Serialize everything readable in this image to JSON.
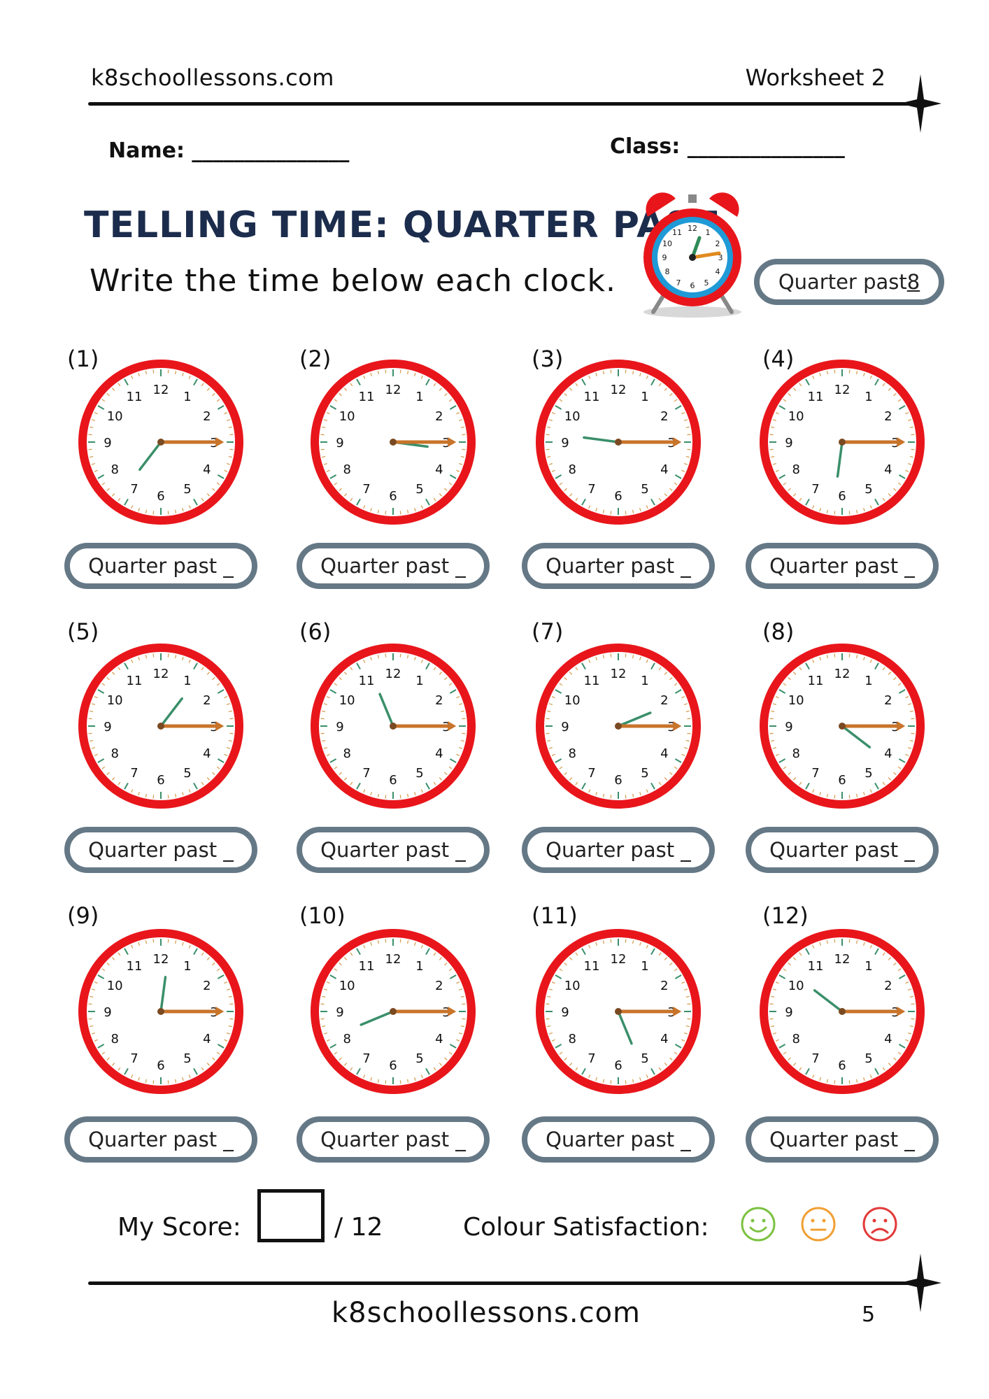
{
  "header": {
    "site": "k8schoollessons.com",
    "worksheet": "Worksheet 2"
  },
  "student": {
    "name_label": "Name: _______________",
    "class_label": "Class: _______________"
  },
  "title": "TELLING TIME: QUARTER PAST",
  "instructions": "Write the time below each clock.",
  "example": {
    "prefix": "Quarter past ",
    "answer": "8"
  },
  "numerals": [
    "12",
    "1",
    "2",
    "3",
    "4",
    "5",
    "6",
    "7",
    "8",
    "9",
    "10",
    "11"
  ],
  "clocks": [
    {
      "number": "(1)",
      "label": "Quarter past _",
      "hour": 7
    },
    {
      "number": "(2)",
      "label": "Quarter past _",
      "hour": 3
    },
    {
      "number": "(3)",
      "label": "Quarter past _",
      "hour": 9
    },
    {
      "number": "(4)",
      "label": "Quarter past _",
      "hour": 6
    },
    {
      "number": "(5)",
      "label": "Quarter past _",
      "hour": 1
    },
    {
      "number": "(6)",
      "label": "Quarter past _",
      "hour": 11
    },
    {
      "number": "(7)",
      "label": "Quarter past _",
      "hour": 2
    },
    {
      "number": "(8)",
      "label": "Quarter past _",
      "hour": 4
    },
    {
      "number": "(9)",
      "label": "Quarter past _",
      "hour": 12
    },
    {
      "number": "(10)",
      "label": "Quarter past _",
      "hour": 8
    },
    {
      "number": "(11)",
      "label": "Quarter past _",
      "hour": 5
    },
    {
      "number": "(12)",
      "label": "Quarter past _",
      "hour": 10
    }
  ],
  "score": {
    "label": "My Score:",
    "total": "/ 12"
  },
  "satisfaction": {
    "label": "Colour Satisfaction:",
    "faces": [
      "happy-face-icon",
      "neutral-face-icon",
      "sad-face-icon"
    ]
  },
  "footer": {
    "site": "k8schoollessons.com",
    "page": "5"
  },
  "colors": {
    "clock_rim": "#e8161b",
    "title": "#1c2c4c",
    "pill_border": "#657886",
    "happy": "#7cc242",
    "neutral": "#f0a033",
    "sad": "#e23a3a",
    "hour_hand": "#3a8f6a",
    "minute_hand": "#c8742a"
  }
}
